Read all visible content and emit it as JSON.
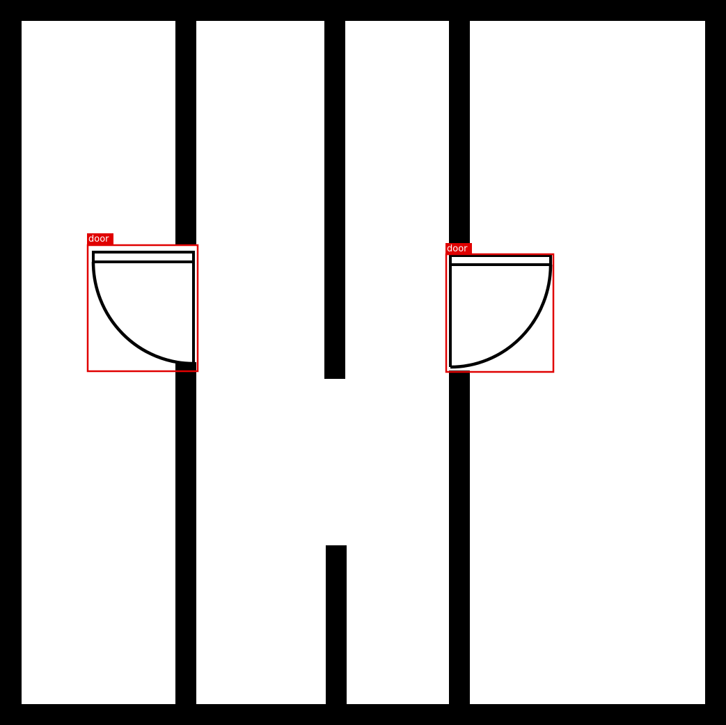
{
  "plan": {
    "annotations": [
      {
        "label": "door",
        "color": "#e00000",
        "hinge": "right"
      },
      {
        "label": "door",
        "color": "#e00000",
        "hinge": "left"
      }
    ]
  }
}
